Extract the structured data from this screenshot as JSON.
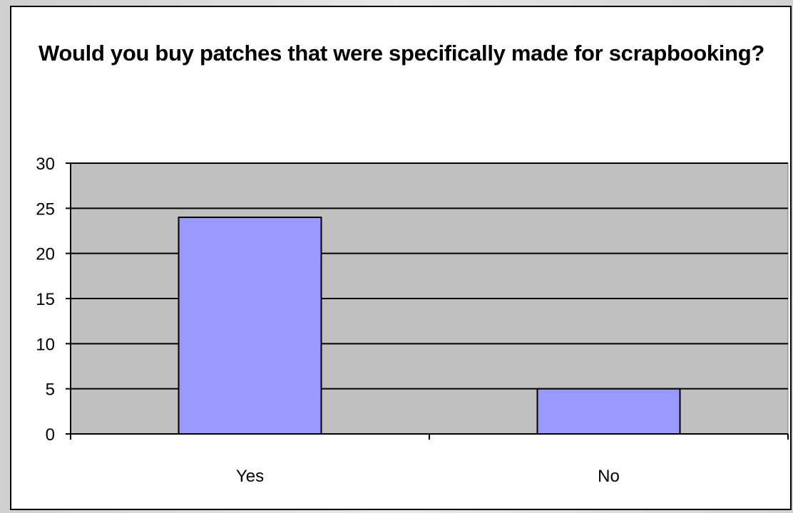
{
  "chart_data": {
    "type": "bar",
    "title": "Would you buy patches that were specifically made for scrapbooking?",
    "categories": [
      "Yes",
      "No"
    ],
    "values": [
      24,
      5
    ],
    "ylim": [
      0,
      30
    ],
    "yticks": [
      0,
      5,
      10,
      15,
      20,
      25,
      30
    ],
    "xlabel": "",
    "ylabel": "",
    "grid": true,
    "legend": "none",
    "colors": {
      "bar_fill": "#9999ff",
      "plot_background": "#c0c0c0",
      "gridline": "#000000"
    }
  }
}
